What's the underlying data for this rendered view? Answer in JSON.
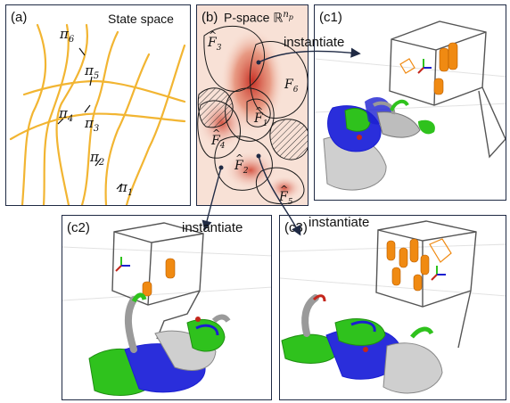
{
  "panel_a": {
    "tag": "(a)",
    "title": "State space",
    "paths": [
      {
        "sym": "π",
        "sub": "6"
      },
      {
        "sym": "π",
        "sub": "5"
      },
      {
        "sym": "π",
        "sub": "4"
      },
      {
        "sym": "π",
        "sub": "3"
      },
      {
        "sym": "π",
        "sub": "2"
      },
      {
        "sym": "π",
        "sub": "1"
      }
    ]
  },
  "panel_b": {
    "tag": "(b)",
    "title": "P-space ℝ",
    "title_sup": "n",
    "title_sup_sub": "p",
    "regions": [
      {
        "sym": "F",
        "sub": "3"
      },
      {
        "sym": "F",
        "sub": "6"
      },
      {
        "sym": "F",
        "sub": "1"
      },
      {
        "sym": "F",
        "sub": "4"
      },
      {
        "sym": "F",
        "sub": "2"
      },
      {
        "sym": "F",
        "sub": "5"
      }
    ]
  },
  "panel_c1": {
    "tag": "(c1)"
  },
  "panel_c2": {
    "tag": "(c2)"
  },
  "panel_c3": {
    "tag": "(c3)"
  },
  "arrows": {
    "to_c1": "instantiate",
    "to_c2": "instantiate",
    "to_c3": "instantiate"
  },
  "colors": {
    "border": "#1f2a44",
    "path": "#f2b532",
    "pspace_bg": "#f8e1d6",
    "density": "#c4261c",
    "robot_blue": "#1b1fd1",
    "robot_green": "#2fc21d",
    "robot_gray": "#9a9a9a",
    "obstacle": "#f08a12"
  }
}
